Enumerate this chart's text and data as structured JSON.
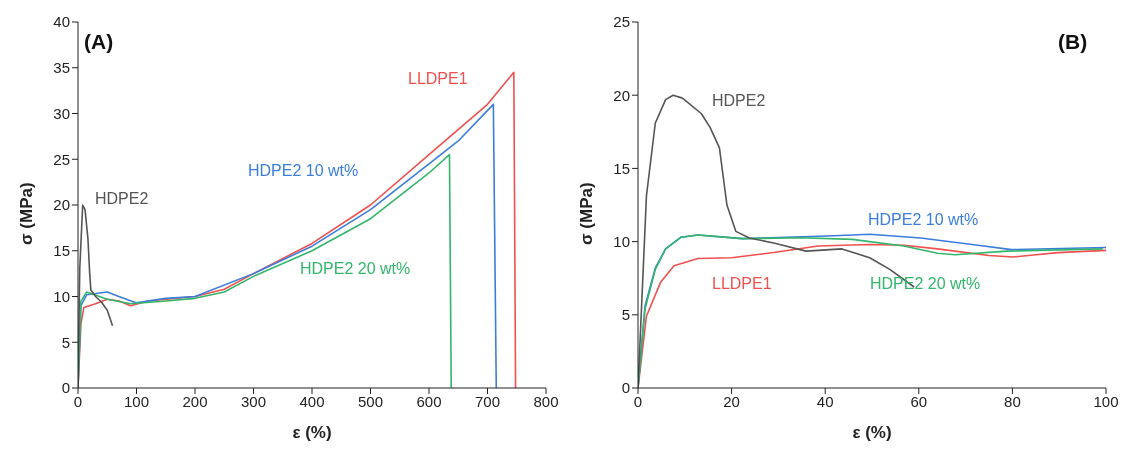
{
  "chart_data": [
    {
      "type": "line",
      "annotations": [
        "(A)"
      ],
      "xlabel": "ε (%)",
      "ylabel": "σ (MPa)",
      "xlim": [
        0,
        800
      ],
      "xticks": [
        0,
        100,
        200,
        300,
        400,
        500,
        600,
        700,
        800
      ],
      "ylim": [
        0,
        40
      ],
      "yticks": [
        0,
        5,
        10,
        15,
        20,
        25,
        30,
        35,
        40
      ],
      "grid": false,
      "legend": false,
      "series": [
        {
          "name": "LLDPE1",
          "color": "#f0504f",
          "x": [
            0,
            5,
            10,
            30,
            50,
            70,
            90,
            120,
            200,
            250,
            300,
            400,
            500,
            600,
            700,
            745,
            748
          ],
          "values": [
            0,
            7,
            8.8,
            9.2,
            9.7,
            9.5,
            9,
            9.5,
            10,
            10.8,
            12.5,
            15.8,
            20,
            25.5,
            31,
            34.5,
            0
          ]
        },
        {
          "name": "HDPE2 10 wt%",
          "color": "#3b7ddd",
          "x": [
            0,
            5,
            15,
            50,
            70,
            100,
            150,
            200,
            300,
            400,
            500,
            600,
            650,
            710,
            715
          ],
          "values": [
            0,
            9,
            10.2,
            10.5,
            10,
            9.3,
            9.8,
            10,
            12.5,
            15.5,
            19.5,
            24.5,
            27,
            31,
            0
          ]
        },
        {
          "name": "HDPE2 20 wt%",
          "color": "#33b56b",
          "x": [
            0,
            5,
            15,
            50,
            90,
            150,
            200,
            250,
            300,
            400,
            500,
            600,
            635,
            638
          ],
          "values": [
            0,
            9.5,
            10.5,
            9.7,
            9.2,
            9.5,
            9.8,
            10.5,
            12.2,
            15,
            18.5,
            23.5,
            25.5,
            0
          ]
        },
        {
          "name": "HDPE2",
          "color": "#555555",
          "x": [
            0,
            3,
            8,
            12,
            17,
            20,
            22,
            30,
            40,
            50,
            59
          ],
          "values": [
            0,
            13,
            20,
            19.5,
            16.3,
            12.5,
            10.7,
            10,
            9.4,
            8.5,
            6.8
          ]
        }
      ]
    },
    {
      "type": "line",
      "annotations": [
        "(B)"
      ],
      "xlabel": "ε (%)",
      "ylabel": "σ (MPa)",
      "xlim": [
        0,
        100
      ],
      "xticks": [
        0,
        20,
        40,
        60,
        80,
        100
      ],
      "ylim": [
        0,
        25
      ],
      "yticks": [
        0,
        5,
        10,
        15,
        20,
        25
      ],
      "grid": false,
      "legend": false,
      "series": [
        {
          "name": "LLDPE1",
          "color": "#f0504f",
          "x": [
            0,
            1.8,
            4.8,
            7.7,
            12.8,
            20,
            29,
            38.5,
            49.5,
            56.8,
            64,
            75,
            80.2,
            89.7,
            100
          ],
          "values": [
            0,
            4.9,
            7.2,
            8.35,
            8.85,
            8.9,
            9.25,
            9.7,
            9.8,
            9.75,
            9.5,
            9.05,
            8.95,
            9.25,
            9.4
          ]
        },
        {
          "name": "HDPE2 10 wt%",
          "color": "#3b7ddd",
          "x": [
            0,
            1.5,
            3.7,
            5.9,
            9.2,
            12.8,
            22.3,
            42,
            49.5,
            60.4,
            71.4,
            79.8,
            100
          ],
          "values": [
            0,
            5.6,
            8.2,
            9.5,
            10.3,
            10.45,
            10.2,
            10.4,
            10.5,
            10.25,
            9.8,
            9.45,
            9.6
          ]
        },
        {
          "name": "HDPE2 20 wt%",
          "color": "#33b56b",
          "x": [
            0,
            1.5,
            3.7,
            5.9,
            9.2,
            12.8,
            22.3,
            34.8,
            45.8,
            56.8,
            64,
            67.8,
            78.8,
            99.3
          ],
          "values": [
            0,
            5.4,
            8.1,
            9.5,
            10.3,
            10.45,
            10.2,
            10.26,
            10.15,
            9.7,
            9.2,
            9.1,
            9.35,
            9.5
          ]
        },
        {
          "name": "HDPE2",
          "color": "#555555",
          "x": [
            0,
            1.8,
            3.7,
            5.9,
            7.5,
            9.5,
            13.5,
            15.4,
            17.4,
            19,
            20.9,
            23.8,
            29,
            35.9,
            43.6,
            49.5,
            53.8,
            59
          ],
          "values": [
            0,
            13.1,
            18.1,
            19.7,
            20,
            19.8,
            18.75,
            17.8,
            16.4,
            12.5,
            10.7,
            10.25,
            9.9,
            9.35,
            9.5,
            8.9,
            8.1,
            6.9
          ]
        }
      ]
    }
  ]
}
